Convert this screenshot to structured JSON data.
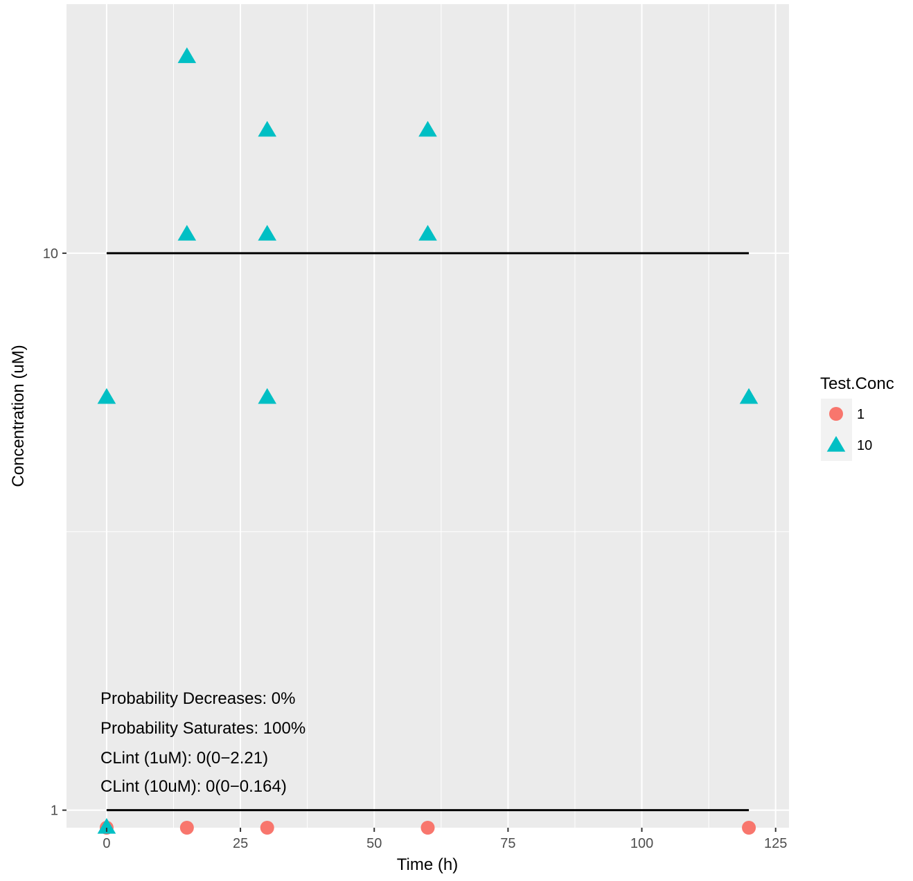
{
  "chart_data": {
    "type": "scatter",
    "title": "",
    "xlabel": "Time (h)",
    "ylabel": "Concentration (uM)",
    "x_scale": "linear",
    "y_scale": "log",
    "xlim": [
      -7.5,
      127.5
    ],
    "ylim": [
      0.93,
      28
    ],
    "x_ticks": [
      0,
      25,
      50,
      75,
      100,
      125
    ],
    "x_tick_labels": [
      "0",
      "25",
      "50",
      "75",
      "100",
      "125"
    ],
    "y_ticks": [
      1,
      10
    ],
    "y_tick_labels": [
      "1",
      "10"
    ],
    "grid": true,
    "legend": {
      "title": "Test.Conc",
      "position": "right",
      "entries": [
        {
          "label": "1",
          "shape": "circle",
          "color": "#F8766D"
        },
        {
          "label": "10",
          "shape": "triangle",
          "color": "#00BFC4"
        }
      ]
    },
    "series": [
      {
        "name": "1",
        "shape": "circle",
        "color": "#F8766D",
        "points": [
          [
            0,
            0.93
          ],
          [
            15,
            0.93
          ],
          [
            30,
            0.93
          ],
          [
            60,
            0.93
          ],
          [
            120,
            0.93
          ]
        ]
      },
      {
        "name": "10",
        "shape": "triangle",
        "color": "#00BFC4",
        "points": [
          [
            0,
            0.93
          ],
          [
            0,
            5.5
          ],
          [
            15,
            10.8
          ],
          [
            15,
            22.5
          ],
          [
            30,
            5.5
          ],
          [
            30,
            10.8
          ],
          [
            30,
            16.6
          ],
          [
            60,
            10.8
          ],
          [
            60,
            16.6
          ],
          [
            120,
            5.5
          ]
        ]
      }
    ],
    "hlines": [
      {
        "y": 10,
        "x_from": 0,
        "x_to": 120,
        "color": "#000000"
      },
      {
        "y": 1,
        "x_from": 0,
        "x_to": 120,
        "color": "#000000"
      }
    ],
    "annotations": [
      "Probability Decreases: 0%",
      "Probability Saturates: 100%",
      "CLint (1uM): 0(0−2.21)",
      "CLint (10uM): 0(0−0.164)"
    ],
    "colors": {
      "panel_background": "#EBEBEB",
      "grid": "#FFFFFF"
    }
  }
}
